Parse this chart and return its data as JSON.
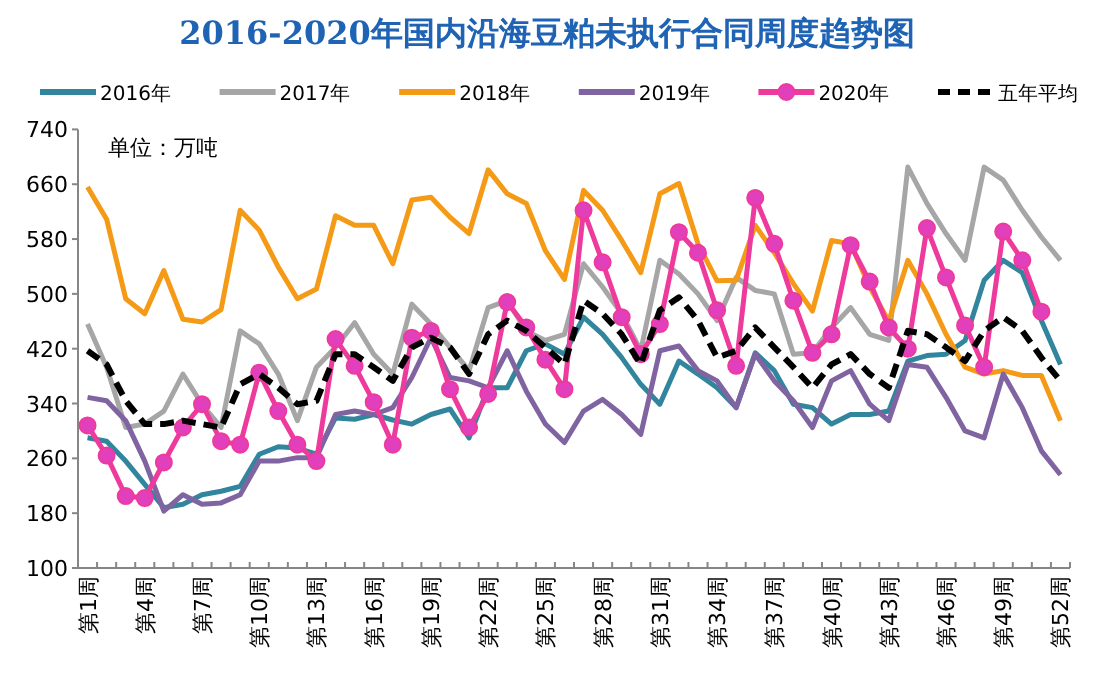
{
  "chart_data": {
    "type": "line",
    "title": "2016-2020年国内沿海豆粕未执行合同周度趋势图",
    "annotations": [
      "单位：万吨"
    ],
    "categories": [
      "第1周",
      null,
      null,
      "第4周",
      null,
      null,
      "第7周",
      null,
      null,
      "第10周",
      null,
      null,
      "第13周",
      null,
      null,
      "第16周",
      null,
      null,
      "第19周",
      null,
      null,
      "第22周",
      null,
      null,
      "第25周",
      null,
      null,
      "第28周",
      null,
      null,
      "第31周",
      null,
      null,
      "第34周",
      null,
      null,
      "第37周",
      null,
      null,
      "第40周",
      null,
      null,
      "第43周",
      null,
      null,
      "第46周",
      null,
      null,
      "第49周",
      null,
      null,
      "第52周"
    ],
    "ylim": [
      100,
      740
    ],
    "yticks": [
      100,
      180,
      260,
      340,
      420,
      500,
      580,
      660,
      740
    ],
    "legend": "top",
    "grid": false,
    "series": [
      {
        "name": "2016年",
        "color": "#31859c",
        "values": [
          290,
          285,
          256,
          222,
          188,
          193,
          207,
          212,
          219,
          266,
          277,
          275,
          266,
          319,
          317,
          324,
          316,
          310,
          324,
          332,
          290,
          363,
          363,
          417,
          427,
          412,
          466,
          441,
          407,
          368,
          339,
          402,
          383,
          363,
          334,
          414,
          388,
          339,
          334,
          310,
          324,
          324,
          329,
          402,
          410,
          412,
          432,
          520,
          549,
          531,
          461,
          397
        ]
      },
      {
        "name": "2017年",
        "color": "#a6a6a6",
        "values": [
          456,
          393,
          305,
          310,
          329,
          383,
          339,
          305,
          446,
          427,
          383,
          315,
          393,
          422,
          458,
          412,
          383,
          485,
          456,
          422,
          388,
          480,
          490,
          446,
          432,
          441,
          544,
          510,
          471,
          417,
          549,
          529,
          500,
          461,
          524,
          505,
          500,
          412,
          414,
          451,
          480,
          441,
          432,
          685,
          632,
          588,
          549,
          685,
          666,
          622,
          583,
          549
        ]
      },
      {
        "name": "2018年",
        "color": "#f59a17",
        "values": [
          656,
          609,
          493,
          471,
          534,
          463,
          459,
          477,
          622,
          593,
          539,
          493,
          507,
          614,
          600,
          600,
          544,
          637,
          641,
          612,
          588,
          681,
          646,
          632,
          563,
          521,
          651,
          622,
          578,
          531,
          646,
          661,
          573,
          519,
          520,
          600,
          560,
          515,
          475,
          578,
          573,
          510,
          460,
          549,
          500,
          441,
          393,
          383,
          388,
          381,
          381,
          315
        ]
      },
      {
        "name": "2019年",
        "color": "#8064a2",
        "values": [
          349,
          344,
          315,
          256,
          183,
          207,
          193,
          195,
          207,
          256,
          256,
          261,
          261,
          324,
          329,
          324,
          334,
          378,
          436,
          378,
          373,
          363,
          417,
          358,
          310,
          283,
          329,
          346,
          324,
          295,
          417,
          424,
          388,
          373,
          334,
          412,
          373,
          344,
          305,
          373,
          388,
          339,
          315,
          397,
          393,
          349,
          300,
          290,
          383,
          334,
          271,
          236
        ]
      },
      {
        "name": "2020年",
        "color": "#ee3a9c",
        "marker": "circle",
        "values": [
          308,
          264,
          205,
          202,
          254,
          305,
          339,
          285,
          280,
          385,
          329,
          280,
          256,
          434,
          395,
          342,
          280,
          436,
          446,
          361,
          305,
          354,
          488,
          451,
          404,
          361,
          622,
          546,
          466,
          412,
          456,
          590,
          560,
          476,
          395,
          640,
          573,
          490,
          414,
          441,
          571,
          518,
          451,
          420,
          596,
          524,
          454,
          393,
          591,
          549,
          474,
          null
        ]
      },
      {
        "name": "五年平均",
        "color": "#000000",
        "line_style": "dashed",
        "values": [
          417,
          397,
          344,
          310,
          310,
          315,
          310,
          305,
          368,
          383,
          363,
          339,
          344,
          412,
          412,
          393,
          373,
          422,
          436,
          422,
          383,
          441,
          461,
          446,
          422,
          397,
          490,
          471,
          441,
          397,
          476,
          495,
          461,
          407,
          417,
          451,
          422,
          393,
          363,
          397,
          412,
          383,
          363,
          446,
          441,
          422,
          402,
          446,
          466,
          446,
          407,
          373
        ]
      }
    ]
  }
}
